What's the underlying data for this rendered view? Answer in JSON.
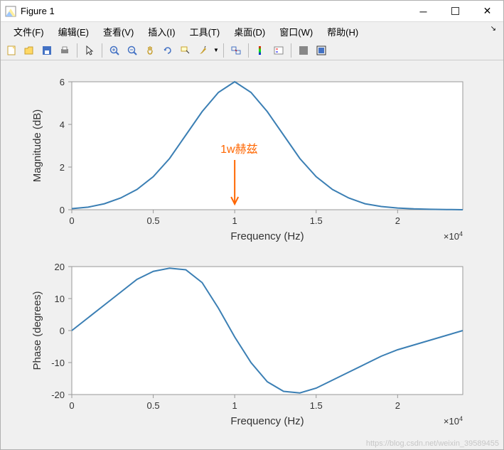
{
  "window": {
    "title": "Figure 1",
    "icon_colors": {
      "border": "#888",
      "fill1": "#ffef9e",
      "fill2": "#9ec7ff"
    }
  },
  "menu": {
    "items": [
      "文件(F)",
      "编辑(E)",
      "查看(V)",
      "插入(I)",
      "工具(T)",
      "桌面(D)",
      "窗口(W)",
      "帮助(H)"
    ]
  },
  "toolbar": {
    "groups": [
      [
        "new",
        "open",
        "save",
        "print"
      ],
      [
        "pointer"
      ],
      [
        "zoom-in",
        "zoom-out",
        "pan",
        "rotate",
        "data-cursor",
        "brush"
      ],
      [
        "link"
      ],
      [
        "colorbar",
        "legend"
      ],
      [
        "dock",
        "undock"
      ]
    ]
  },
  "annotation": {
    "text": "1w赫兹",
    "color": "#ff6600"
  },
  "exponent": "×10",
  "exponent_sup": "4",
  "chart1": {
    "type": "line",
    "xlabel": "Frequency (Hz)",
    "ylabel": "Magnitude (dB)",
    "xlim": [
      0,
      2.4
    ],
    "xtick_step": 0.5,
    "xticks": [
      0,
      0.5,
      1,
      1.5,
      2
    ],
    "ylim": [
      0,
      6
    ],
    "ytick_step": 2,
    "yticks": [
      0,
      2,
      4,
      6
    ],
    "line_color": "#3b7fb4",
    "line_width": 2,
    "axis_color": "#999",
    "background": "#fff",
    "x": [
      0,
      0.1,
      0.2,
      0.3,
      0.4,
      0.5,
      0.6,
      0.7,
      0.8,
      0.9,
      1.0,
      1.1,
      1.2,
      1.3,
      1.4,
      1.5,
      1.6,
      1.7,
      1.8,
      1.9,
      2.0,
      2.1,
      2.2,
      2.3,
      2.4
    ],
    "y": [
      0.05,
      0.12,
      0.28,
      0.55,
      0.95,
      1.55,
      2.4,
      3.5,
      4.6,
      5.5,
      6.0,
      5.5,
      4.6,
      3.5,
      2.4,
      1.55,
      0.95,
      0.55,
      0.28,
      0.15,
      0.08,
      0.04,
      0.02,
      0.01,
      0.0
    ]
  },
  "chart2": {
    "type": "line",
    "xlabel": "Frequency (Hz)",
    "ylabel": "Phase (degrees)",
    "xlim": [
      0,
      2.4
    ],
    "xtick_step": 0.5,
    "xticks": [
      0,
      0.5,
      1,
      1.5,
      2
    ],
    "ylim": [
      -20,
      20
    ],
    "ytick_step": 10,
    "yticks": [
      -20,
      -10,
      0,
      10,
      20
    ],
    "line_color": "#3b7fb4",
    "line_width": 2,
    "axis_color": "#999",
    "background": "#fff",
    "x": [
      0,
      0.1,
      0.2,
      0.3,
      0.4,
      0.5,
      0.6,
      0.7,
      0.8,
      0.9,
      1.0,
      1.1,
      1.2,
      1.3,
      1.4,
      1.5,
      1.6,
      1.7,
      1.8,
      1.9,
      2.0,
      2.1,
      2.2,
      2.3,
      2.4
    ],
    "y": [
      0,
      4,
      8,
      12,
      16,
      18.5,
      19.5,
      19,
      15,
      7,
      -2,
      -10,
      -16,
      -19,
      -19.5,
      -18,
      -15.5,
      -13,
      -10.5,
      -8,
      -6,
      -4.5,
      -3,
      -1.5,
      0
    ]
  },
  "watermark": "https://blog.csdn.net/weixin_39589455"
}
